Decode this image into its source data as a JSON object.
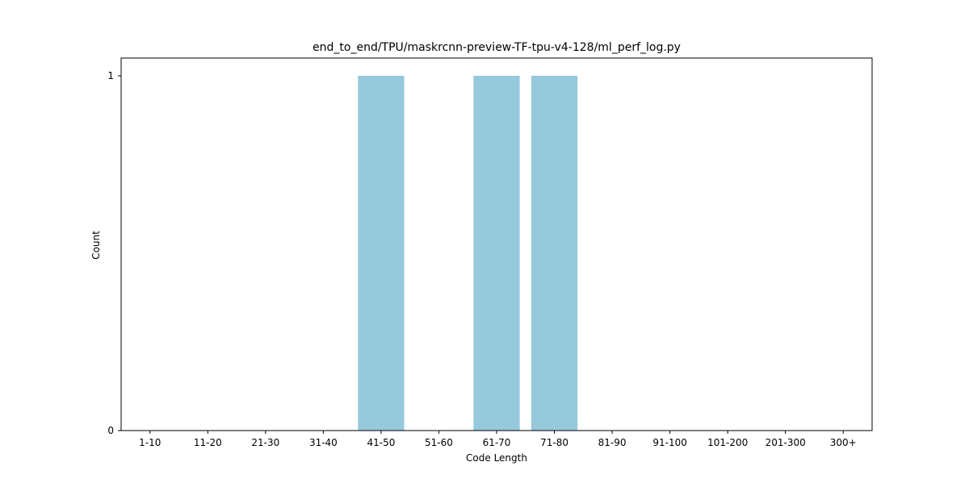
{
  "chart_data": {
    "type": "bar",
    "title": "end_to_end/TPU/maskrcnn-preview-TF-tpu-v4-128/ml_perf_log.py",
    "xlabel": "Code Length",
    "ylabel": "Count",
    "categories": [
      "1-10",
      "11-20",
      "21-30",
      "31-40",
      "41-50",
      "51-60",
      "61-70",
      "71-80",
      "81-90",
      "91-100",
      "101-200",
      "201-300",
      "300+"
    ],
    "values": [
      0,
      0,
      0,
      0,
      1,
      0,
      1,
      1,
      0,
      0,
      0,
      0,
      0
    ],
    "ylim": [
      0,
      1.05
    ],
    "yticks": [
      0,
      1
    ],
    "grid": false,
    "bar_color": "#96c9dc"
  }
}
